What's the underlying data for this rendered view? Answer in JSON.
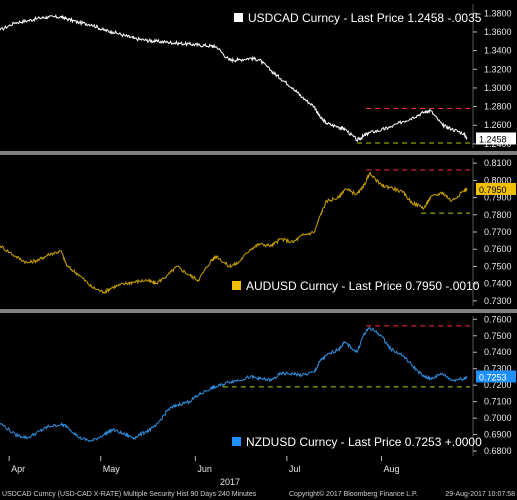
{
  "chart_data": [
    {
      "type": "line",
      "legend": "USDCAD Curncy - Last Price 1.2458 -.0035",
      "last_price_label": "1.2458",
      "color": "#ffffff",
      "label_bg": "#ffffff",
      "label_fg": "#000000",
      "ylim": [
        1.2356,
        1.39
      ],
      "ticks": [
        "1.3800",
        "1.3600",
        "1.3400",
        "1.3200",
        "1.3000",
        "1.2800",
        "1.2600",
        "1.2400"
      ],
      "resistance": 1.278,
      "support": 1.241,
      "resistance_from": "2017-07-27",
      "support_from": "2017-07-24",
      "points": [
        [
          "2017-03-29",
          1.362
        ],
        [
          "2017-04-03",
          1.37
        ],
        [
          "2017-04-07",
          1.372
        ],
        [
          "2017-04-11",
          1.375
        ],
        [
          "2017-04-14",
          1.376
        ],
        [
          "2017-04-18",
          1.376
        ],
        [
          "2017-04-20",
          1.374
        ],
        [
          "2017-04-24",
          1.37
        ],
        [
          "2017-04-28",
          1.368
        ],
        [
          "2017-05-02",
          1.362
        ],
        [
          "2017-05-05",
          1.36
        ],
        [
          "2017-05-09",
          1.356
        ],
        [
          "2017-05-12",
          1.353
        ],
        [
          "2017-05-16",
          1.351
        ],
        [
          "2017-05-19",
          1.35
        ],
        [
          "2017-05-23",
          1.349
        ],
        [
          "2017-05-26",
          1.348
        ],
        [
          "2017-05-30",
          1.347
        ],
        [
          "2017-06-02",
          1.346
        ],
        [
          "2017-06-06",
          1.345
        ],
        [
          "2017-06-08",
          1.344
        ],
        [
          "2017-06-12",
          1.33
        ],
        [
          "2017-06-15",
          1.33
        ],
        [
          "2017-06-19",
          1.332
        ],
        [
          "2017-06-22",
          1.33
        ],
        [
          "2017-06-26",
          1.318
        ],
        [
          "2017-06-29",
          1.31
        ],
        [
          "2017-07-03",
          1.3
        ],
        [
          "2017-07-06",
          1.29
        ],
        [
          "2017-07-10",
          1.28
        ],
        [
          "2017-07-12",
          1.268
        ],
        [
          "2017-07-14",
          1.262
        ],
        [
          "2017-07-18",
          1.258
        ],
        [
          "2017-07-20",
          1.256
        ],
        [
          "2017-07-24",
          1.244
        ],
        [
          "2017-07-26",
          1.248
        ],
        [
          "2017-07-28",
          1.252
        ],
        [
          "2017-08-01",
          1.255
        ],
        [
          "2017-08-04",
          1.258
        ],
        [
          "2017-08-08",
          1.264
        ],
        [
          "2017-08-11",
          1.268
        ],
        [
          "2017-08-15",
          1.274
        ],
        [
          "2017-08-17",
          1.276
        ],
        [
          "2017-08-21",
          1.26
        ],
        [
          "2017-08-24",
          1.256
        ],
        [
          "2017-08-28",
          1.251
        ],
        [
          "2017-08-29",
          1.2458
        ]
      ]
    },
    {
      "type": "line",
      "legend": "AUDUSD Curncy - Last Price 0.7950 -.0010",
      "last_price_label": "0.7950",
      "color": "#c8a000",
      "label_bg": "#f0c000",
      "label_fg": "#000000",
      "ylim": [
        0.727,
        0.813
      ],
      "ticks": [
        "0.8100",
        "0.8000",
        "0.7900",
        "0.7800",
        "0.7700",
        "0.7600",
        "0.7500",
        "0.7400",
        "0.7300"
      ],
      "resistance": 0.806,
      "support": 0.781,
      "resistance_from": "2017-07-27",
      "support_from": "2017-08-14",
      "points": [
        [
          "2017-03-29",
          0.762
        ],
        [
          "2017-04-03",
          0.756
        ],
        [
          "2017-04-07",
          0.752
        ],
        [
          "2017-04-11",
          0.754
        ],
        [
          "2017-04-14",
          0.757
        ],
        [
          "2017-04-18",
          0.759
        ],
        [
          "2017-04-20",
          0.75
        ],
        [
          "2017-04-24",
          0.745
        ],
        [
          "2017-04-28",
          0.738
        ],
        [
          "2017-05-02",
          0.735
        ],
        [
          "2017-05-05",
          0.738
        ],
        [
          "2017-05-09",
          0.74
        ],
        [
          "2017-05-12",
          0.741
        ],
        [
          "2017-05-16",
          0.742
        ],
        [
          "2017-05-19",
          0.74
        ],
        [
          "2017-05-23",
          0.745
        ],
        [
          "2017-05-26",
          0.75
        ],
        [
          "2017-05-30",
          0.745
        ],
        [
          "2017-06-02",
          0.742
        ],
        [
          "2017-06-06",
          0.753
        ],
        [
          "2017-06-08",
          0.756
        ],
        [
          "2017-06-12",
          0.75
        ],
        [
          "2017-06-15",
          0.752
        ],
        [
          "2017-06-19",
          0.76
        ],
        [
          "2017-06-22",
          0.763
        ],
        [
          "2017-06-26",
          0.762
        ],
        [
          "2017-06-29",
          0.766
        ],
        [
          "2017-07-03",
          0.764
        ],
        [
          "2017-07-06",
          0.768
        ],
        [
          "2017-07-10",
          0.77
        ],
        [
          "2017-07-12",
          0.78
        ],
        [
          "2017-07-14",
          0.788
        ],
        [
          "2017-07-18",
          0.79
        ],
        [
          "2017-07-20",
          0.795
        ],
        [
          "2017-07-24",
          0.792
        ],
        [
          "2017-07-26",
          0.796
        ],
        [
          "2017-07-28",
          0.804
        ],
        [
          "2017-08-01",
          0.797
        ],
        [
          "2017-08-04",
          0.796
        ],
        [
          "2017-08-08",
          0.793
        ],
        [
          "2017-08-11",
          0.787
        ],
        [
          "2017-08-15",
          0.784
        ],
        [
          "2017-08-17",
          0.79
        ],
        [
          "2017-08-21",
          0.793
        ],
        [
          "2017-08-24",
          0.788
        ],
        [
          "2017-08-28",
          0.794
        ],
        [
          "2017-08-29",
          0.795
        ]
      ]
    },
    {
      "type": "line",
      "legend": "NZDUSD Curncy - Last Price 0.7253 +.0000",
      "last_price_label": "0.7253",
      "color": "#2f8fe0",
      "label_bg": "#1e90ff",
      "label_fg": "#ffffff",
      "ylim": [
        0.677,
        0.762
      ],
      "ticks": [
        "0.7600",
        "0.7500",
        "0.7400",
        "0.7300",
        "0.7200",
        "0.7100",
        "0.7000",
        "0.6900",
        "0.6800"
      ],
      "resistance": 0.756,
      "support": 0.719,
      "resistance_from": "2017-07-27",
      "support_from": "2017-06-10",
      "points": [
        [
          "2017-03-29",
          0.697
        ],
        [
          "2017-04-03",
          0.69
        ],
        [
          "2017-04-07",
          0.688
        ],
        [
          "2017-04-11",
          0.692
        ],
        [
          "2017-04-14",
          0.695
        ],
        [
          "2017-04-18",
          0.696
        ],
        [
          "2017-04-20",
          0.695
        ],
        [
          "2017-04-24",
          0.688
        ],
        [
          "2017-04-28",
          0.686
        ],
        [
          "2017-05-02",
          0.69
        ],
        [
          "2017-05-05",
          0.693
        ],
        [
          "2017-05-09",
          0.69
        ],
        [
          "2017-05-12",
          0.688
        ],
        [
          "2017-05-16",
          0.692
        ],
        [
          "2017-05-19",
          0.695
        ],
        [
          "2017-05-23",
          0.705
        ],
        [
          "2017-05-26",
          0.708
        ],
        [
          "2017-05-30",
          0.71
        ],
        [
          "2017-06-02",
          0.714
        ],
        [
          "2017-06-06",
          0.718
        ],
        [
          "2017-06-08",
          0.719
        ],
        [
          "2017-06-12",
          0.722
        ],
        [
          "2017-06-15",
          0.723
        ],
        [
          "2017-06-19",
          0.725
        ],
        [
          "2017-06-22",
          0.724
        ],
        [
          "2017-06-26",
          0.723
        ],
        [
          "2017-06-29",
          0.727
        ],
        [
          "2017-07-03",
          0.727
        ],
        [
          "2017-07-06",
          0.726
        ],
        [
          "2017-07-10",
          0.728
        ],
        [
          "2017-07-12",
          0.735
        ],
        [
          "2017-07-14",
          0.738
        ],
        [
          "2017-07-18",
          0.742
        ],
        [
          "2017-07-20",
          0.746
        ],
        [
          "2017-07-24",
          0.74
        ],
        [
          "2017-07-26",
          0.75
        ],
        [
          "2017-07-28",
          0.755
        ],
        [
          "2017-08-01",
          0.75
        ],
        [
          "2017-08-04",
          0.742
        ],
        [
          "2017-08-08",
          0.738
        ],
        [
          "2017-08-11",
          0.732
        ],
        [
          "2017-08-15",
          0.725
        ],
        [
          "2017-08-17",
          0.724
        ],
        [
          "2017-08-21",
          0.727
        ],
        [
          "2017-08-24",
          0.723
        ],
        [
          "2017-08-28",
          0.724
        ],
        [
          "2017-08-29",
          0.7253
        ]
      ]
    }
  ],
  "x_axis": {
    "months": [
      {
        "label": "Apr",
        "date": "2017-04-01"
      },
      {
        "label": "May",
        "date": "2017-05-01"
      },
      {
        "label": "Jun",
        "date": "2017-06-01"
      },
      {
        "label": "Jul",
        "date": "2017-07-01"
      },
      {
        "label": "Aug",
        "date": "2017-08-01"
      }
    ],
    "year_label": "2017",
    "xlim": [
      "2017-03-29",
      "2017-08-30"
    ]
  },
  "footer": {
    "left": "USDCAD Curncy (USD-CAD X-RATE) Multiple Security Hist  90 Days 240 Minutes",
    "middle": "Copyright© 2017 Bloomberg Finance L.P.",
    "right": "29-Aug-2017 10:07:58"
  },
  "colors": {
    "resistance_line": "#ff3030",
    "support_line": "#a8d000",
    "panel_separator": "#808080",
    "background": "#000000"
  }
}
